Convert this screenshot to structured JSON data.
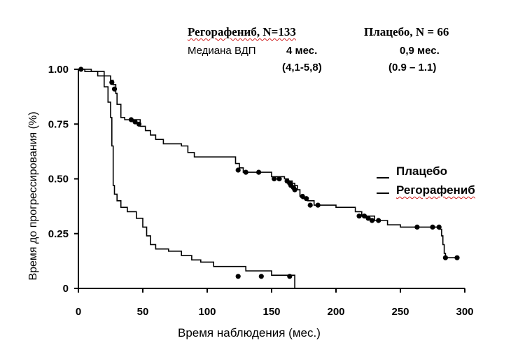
{
  "header": {
    "rego_title": "Регорафениб, N=133",
    "placebo_title": "Плацебо, N = 66",
    "median_label": "Медиана ВДП",
    "rego_median": "4 мес.",
    "rego_ci": "(4,1-5,8)",
    "placebo_median": "0,9 мес.",
    "placebo_ci": "(0.9 – 1.1)"
  },
  "chart_data": {
    "type": "line",
    "xlabel": "Время наблюдения (мес.)",
    "ylabel": "Время до прогрессирования (%)",
    "xlim": [
      0,
      300
    ],
    "ylim": [
      0,
      1
    ],
    "xticks": [
      "0",
      "50",
      "100",
      "150",
      "200",
      "250",
      "300"
    ],
    "yticks": [
      "0",
      "0.25",
      "0.50",
      "0.75",
      "1.00"
    ],
    "grid": false,
    "legend_position": "right",
    "series": [
      {
        "name": "Плацебо",
        "color": "#000000",
        "steps": [
          [
            0,
            1.0
          ],
          [
            10,
            0.99
          ],
          [
            15,
            0.97
          ],
          [
            20,
            0.92
          ],
          [
            23,
            0.85
          ],
          [
            25,
            0.78
          ],
          [
            26,
            0.65
          ],
          [
            27,
            0.47
          ],
          [
            28,
            0.43
          ],
          [
            30,
            0.4
          ],
          [
            33,
            0.37
          ],
          [
            38,
            0.35
          ],
          [
            45,
            0.32
          ],
          [
            50,
            0.28
          ],
          [
            53,
            0.24
          ],
          [
            56,
            0.2
          ],
          [
            60,
            0.18
          ],
          [
            70,
            0.17
          ],
          [
            80,
            0.15
          ],
          [
            88,
            0.13
          ],
          [
            95,
            0.12
          ],
          [
            105,
            0.1
          ],
          [
            130,
            0.08
          ],
          [
            150,
            0.06
          ],
          [
            168,
            0.05
          ],
          [
            168,
            0.0
          ]
        ],
        "censored": [
          [
            124,
            0.055
          ],
          [
            142,
            0.055
          ],
          [
            164,
            0.055
          ]
        ]
      },
      {
        "name": "Регорафениб",
        "color": "#000000",
        "steps": [
          [
            0,
            1.0
          ],
          [
            5,
            0.99
          ],
          [
            20,
            0.97
          ],
          [
            25,
            0.95
          ],
          [
            27,
            0.93
          ],
          [
            29,
            0.89
          ],
          [
            30,
            0.84
          ],
          [
            33,
            0.78
          ],
          [
            36,
            0.77
          ],
          [
            48,
            0.74
          ],
          [
            52,
            0.72
          ],
          [
            56,
            0.7
          ],
          [
            60,
            0.68
          ],
          [
            66,
            0.66
          ],
          [
            80,
            0.65
          ],
          [
            85,
            0.62
          ],
          [
            90,
            0.6
          ],
          [
            122,
            0.57
          ],
          [
            125,
            0.55
          ],
          [
            128,
            0.53
          ],
          [
            150,
            0.51
          ],
          [
            160,
            0.5
          ],
          [
            163,
            0.49
          ],
          [
            166,
            0.48
          ],
          [
            168,
            0.47
          ],
          [
            170,
            0.45
          ],
          [
            172,
            0.42
          ],
          [
            174,
            0.41
          ],
          [
            178,
            0.4
          ],
          [
            183,
            0.38
          ],
          [
            200,
            0.37
          ],
          [
            215,
            0.35
          ],
          [
            220,
            0.33
          ],
          [
            230,
            0.31
          ],
          [
            240,
            0.29
          ],
          [
            250,
            0.28
          ],
          [
            280,
            0.27
          ],
          [
            282,
            0.24
          ],
          [
            283,
            0.2
          ],
          [
            284,
            0.16
          ],
          [
            285,
            0.14
          ],
          [
            294,
            0.14
          ]
        ],
        "censored": [
          [
            2,
            1.0
          ],
          [
            26,
            0.94
          ],
          [
            28,
            0.91
          ],
          [
            41,
            0.77
          ],
          [
            44,
            0.76
          ],
          [
            47,
            0.75
          ],
          [
            124,
            0.54
          ],
          [
            130,
            0.53
          ],
          [
            140,
            0.53
          ],
          [
            152,
            0.5
          ],
          [
            156,
            0.5
          ],
          [
            162,
            0.49
          ],
          [
            164,
            0.48
          ],
          [
            165,
            0.47
          ],
          [
            167,
            0.46
          ],
          [
            168,
            0.45
          ],
          [
            174,
            0.42
          ],
          [
            177,
            0.41
          ],
          [
            180,
            0.38
          ],
          [
            186,
            0.38
          ],
          [
            218,
            0.33
          ],
          [
            222,
            0.33
          ],
          [
            225,
            0.32
          ],
          [
            228,
            0.31
          ],
          [
            233,
            0.31
          ],
          [
            263,
            0.28
          ],
          [
            275,
            0.28
          ],
          [
            280,
            0.28
          ],
          [
            285,
            0.14
          ],
          [
            294,
            0.14
          ]
        ]
      }
    ]
  }
}
